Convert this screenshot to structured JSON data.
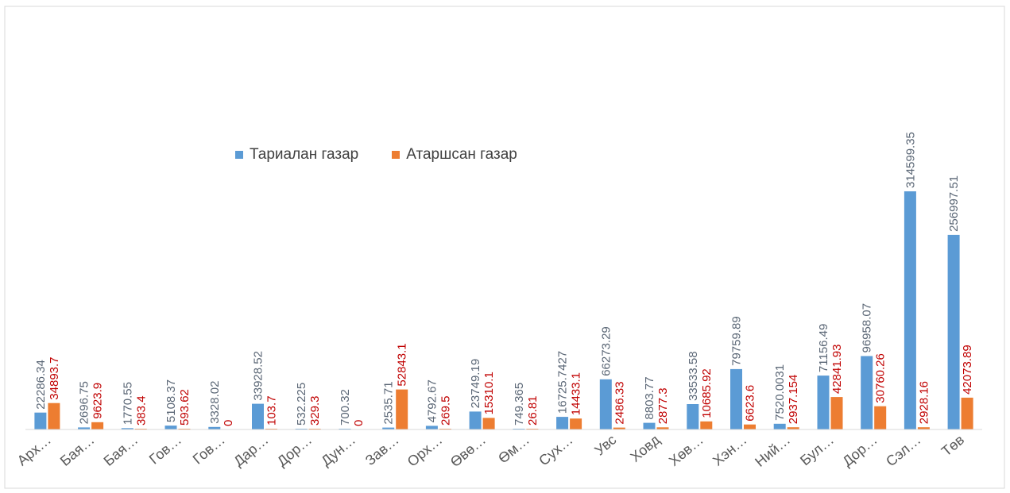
{
  "chart_data": {
    "type": "bar",
    "categories": [
      "Арх…",
      "Бая…",
      "Бая…",
      "Гов…",
      "Гов…",
      "Дар…",
      "Дор…",
      "Дун…",
      "Зав…",
      "Орх…",
      "Өвө…",
      "Өм…",
      "Сух…",
      "Увс",
      "Ховд",
      "Хөв…",
      "Хэн…",
      "Ний…",
      "Бул…",
      "Дор…",
      "Сэл…",
      "Төв"
    ],
    "series": [
      {
        "name": "Тариалан газар",
        "color": "#5b9bd5",
        "values": [
          22286.34,
          2696.75,
          1770.55,
          5108.37,
          3328.02,
          33928.52,
          532.225,
          700.32,
          2535.71,
          4792.67,
          23749.19,
          749.365,
          16725.7427,
          66273.29,
          8803.77,
          33533.58,
          79759.89,
          7520.0031,
          71156.49,
          96958.07,
          314599.35,
          256997.51
        ],
        "labels": [
          "22286.34",
          "2696.75",
          "1770.55",
          "5108.37",
          "3328.02",
          "33928.52",
          "532.225",
          "700.32",
          "2535.71",
          "4792.67",
          "23749.19",
          "749.365",
          "16725.7427",
          "66273.29",
          "8803.77",
          "33533.58",
          "79759.89",
          "7520.0031",
          "71156.49",
          "96958.07",
          "314599.35",
          "256997.51"
        ]
      },
      {
        "name": "Атаршсан газар",
        "color": "#ed7d31",
        "values": [
          34893.7,
          9623.9,
          383.4,
          593.62,
          0,
          103.7,
          329.3,
          0,
          52843.1,
          269.5,
          15310.1,
          26.81,
          14433.1,
          2486.33,
          2877.3,
          10685.92,
          6623.6,
          2937.154,
          42841.93,
          30760.26,
          2928.16,
          42073.89
        ],
        "labels": [
          "34893.7",
          "9623.9",
          "383.4",
          "593.62",
          "0",
          "103.7",
          "329.3",
          "0",
          "52843.1",
          "269.5",
          "15310.1",
          "26.81",
          "14433.1",
          "2486.33",
          "2877.3",
          "10685.92",
          "6623.6",
          "2937.154",
          "42841.93",
          "30760.26",
          "2928.16",
          "42073.89"
        ]
      }
    ],
    "label_colors": [
      "#5a6675",
      "#c00000"
    ],
    "legend_position": "top-left",
    "grid": false,
    "title": "",
    "xlabel": "",
    "ylabel": "",
    "ylim": [
      0,
      400000
    ]
  }
}
